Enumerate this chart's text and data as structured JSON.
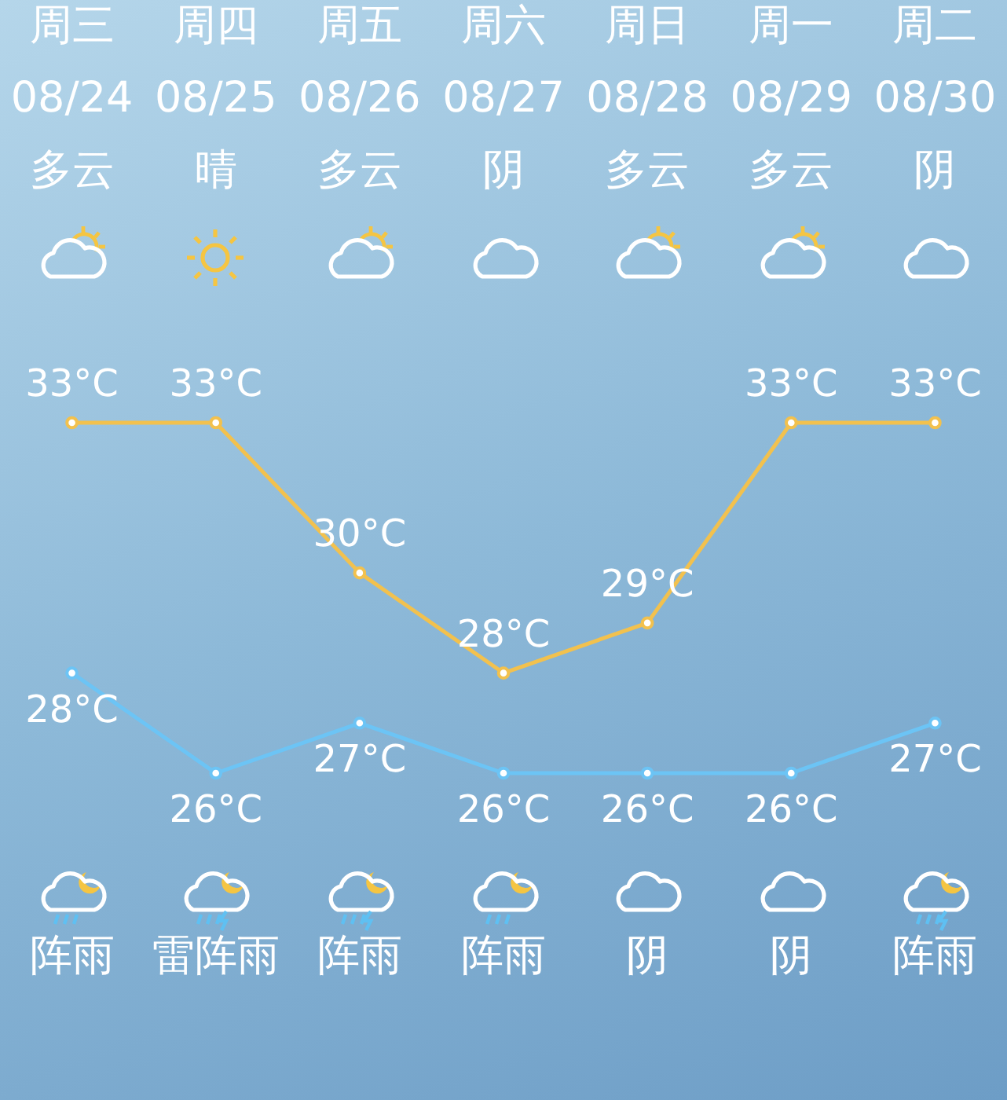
{
  "chart_data": {
    "type": "line",
    "categories": [
      "周三\n08/24\n多云",
      "周四\n08/25\n晴",
      "周五\n08/26\n多云",
      "周六\n08/27\n阴",
      "周日\n08/28\n多云",
      "周一\n08/29\n多云",
      "周二\n08/30\n阴"
    ],
    "series": [
      {
        "color": "#f2c14e",
        "values": [
          33,
          33,
          30,
          28,
          29,
          33,
          33
        ],
        "value_labels": [
          "33°C",
          "33°C",
          "30°C",
          "28°C",
          "29°C",
          "33°C",
          "33°C"
        ]
      },
      {
        "color": "#6cc4f5",
        "values": [
          28,
          26,
          27,
          26,
          26,
          26,
          27
        ],
        "value_labels": [
          "28°C",
          "26°C",
          "27°C",
          "26°C",
          "26°C",
          "26°C",
          "27°C"
        ]
      }
    ],
    "annotations": [
      "阵雨",
      "雷阵雨",
      "阵雨",
      "阵雨",
      "阴",
      "阴",
      "阵雨"
    ],
    "marker": "circle",
    "line_style": "solid"
  }
}
